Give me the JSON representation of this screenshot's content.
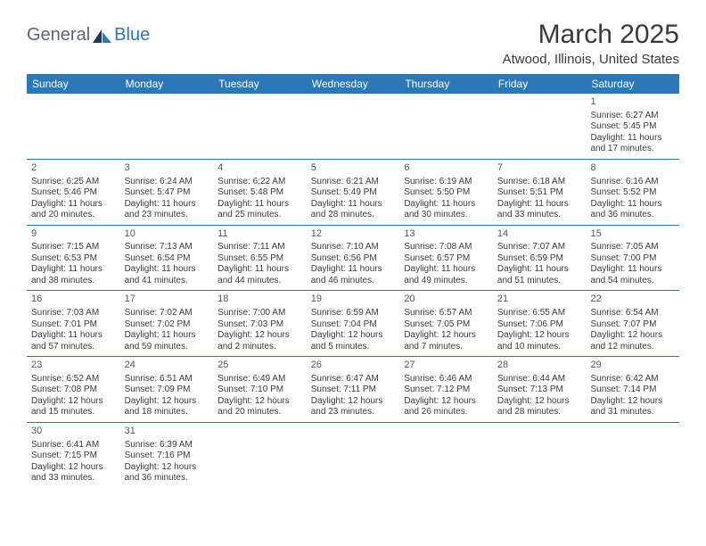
{
  "logo": {
    "part1": "General",
    "part2": "Blue"
  },
  "title": "March 2025",
  "location": "Atwood, Illinois, United States",
  "day_headers": [
    "Sunday",
    "Monday",
    "Tuesday",
    "Wednesday",
    "Thursday",
    "Friday",
    "Saturday"
  ],
  "colors": {
    "header_bg": "#2a78b8",
    "header_text": "#ffffff",
    "text": "#3a3a3a",
    "logo_gray": "#5a6670",
    "logo_blue": "#2a78b8",
    "border": "#2a78b8"
  },
  "weeks": [
    [
      null,
      null,
      null,
      null,
      null,
      null,
      {
        "n": "1",
        "sunrise": "Sunrise: 6:27 AM",
        "sunset": "Sunset: 5:45 PM",
        "daylight": "Daylight: 11 hours and 17 minutes."
      }
    ],
    [
      {
        "n": "2",
        "sunrise": "Sunrise: 6:25 AM",
        "sunset": "Sunset: 5:46 PM",
        "daylight": "Daylight: 11 hours and 20 minutes."
      },
      {
        "n": "3",
        "sunrise": "Sunrise: 6:24 AM",
        "sunset": "Sunset: 5:47 PM",
        "daylight": "Daylight: 11 hours and 23 minutes."
      },
      {
        "n": "4",
        "sunrise": "Sunrise: 6:22 AM",
        "sunset": "Sunset: 5:48 PM",
        "daylight": "Daylight: 11 hours and 25 minutes."
      },
      {
        "n": "5",
        "sunrise": "Sunrise: 6:21 AM",
        "sunset": "Sunset: 5:49 PM",
        "daylight": "Daylight: 11 hours and 28 minutes."
      },
      {
        "n": "6",
        "sunrise": "Sunrise: 6:19 AM",
        "sunset": "Sunset: 5:50 PM",
        "daylight": "Daylight: 11 hours and 30 minutes."
      },
      {
        "n": "7",
        "sunrise": "Sunrise: 6:18 AM",
        "sunset": "Sunset: 5:51 PM",
        "daylight": "Daylight: 11 hours and 33 minutes."
      },
      {
        "n": "8",
        "sunrise": "Sunrise: 6:16 AM",
        "sunset": "Sunset: 5:52 PM",
        "daylight": "Daylight: 11 hours and 36 minutes."
      }
    ],
    [
      {
        "n": "9",
        "sunrise": "Sunrise: 7:15 AM",
        "sunset": "Sunset: 6:53 PM",
        "daylight": "Daylight: 11 hours and 38 minutes."
      },
      {
        "n": "10",
        "sunrise": "Sunrise: 7:13 AM",
        "sunset": "Sunset: 6:54 PM",
        "daylight": "Daylight: 11 hours and 41 minutes."
      },
      {
        "n": "11",
        "sunrise": "Sunrise: 7:11 AM",
        "sunset": "Sunset: 6:55 PM",
        "daylight": "Daylight: 11 hours and 44 minutes."
      },
      {
        "n": "12",
        "sunrise": "Sunrise: 7:10 AM",
        "sunset": "Sunset: 6:56 PM",
        "daylight": "Daylight: 11 hours and 46 minutes."
      },
      {
        "n": "13",
        "sunrise": "Sunrise: 7:08 AM",
        "sunset": "Sunset: 6:57 PM",
        "daylight": "Daylight: 11 hours and 49 minutes."
      },
      {
        "n": "14",
        "sunrise": "Sunrise: 7:07 AM",
        "sunset": "Sunset: 6:59 PM",
        "daylight": "Daylight: 11 hours and 51 minutes."
      },
      {
        "n": "15",
        "sunrise": "Sunrise: 7:05 AM",
        "sunset": "Sunset: 7:00 PM",
        "daylight": "Daylight: 11 hours and 54 minutes."
      }
    ],
    [
      {
        "n": "16",
        "sunrise": "Sunrise: 7:03 AM",
        "sunset": "Sunset: 7:01 PM",
        "daylight": "Daylight: 11 hours and 57 minutes."
      },
      {
        "n": "17",
        "sunrise": "Sunrise: 7:02 AM",
        "sunset": "Sunset: 7:02 PM",
        "daylight": "Daylight: 11 hours and 59 minutes."
      },
      {
        "n": "18",
        "sunrise": "Sunrise: 7:00 AM",
        "sunset": "Sunset: 7:03 PM",
        "daylight": "Daylight: 12 hours and 2 minutes."
      },
      {
        "n": "19",
        "sunrise": "Sunrise: 6:59 AM",
        "sunset": "Sunset: 7:04 PM",
        "daylight": "Daylight: 12 hours and 5 minutes."
      },
      {
        "n": "20",
        "sunrise": "Sunrise: 6:57 AM",
        "sunset": "Sunset: 7:05 PM",
        "daylight": "Daylight: 12 hours and 7 minutes."
      },
      {
        "n": "21",
        "sunrise": "Sunrise: 6:55 AM",
        "sunset": "Sunset: 7:06 PM",
        "daylight": "Daylight: 12 hours and 10 minutes."
      },
      {
        "n": "22",
        "sunrise": "Sunrise: 6:54 AM",
        "sunset": "Sunset: 7:07 PM",
        "daylight": "Daylight: 12 hours and 12 minutes."
      }
    ],
    [
      {
        "n": "23",
        "sunrise": "Sunrise: 6:52 AM",
        "sunset": "Sunset: 7:08 PM",
        "daylight": "Daylight: 12 hours and 15 minutes."
      },
      {
        "n": "24",
        "sunrise": "Sunrise: 6:51 AM",
        "sunset": "Sunset: 7:09 PM",
        "daylight": "Daylight: 12 hours and 18 minutes."
      },
      {
        "n": "25",
        "sunrise": "Sunrise: 6:49 AM",
        "sunset": "Sunset: 7:10 PM",
        "daylight": "Daylight: 12 hours and 20 minutes."
      },
      {
        "n": "26",
        "sunrise": "Sunrise: 6:47 AM",
        "sunset": "Sunset: 7:11 PM",
        "daylight": "Daylight: 12 hours and 23 minutes."
      },
      {
        "n": "27",
        "sunrise": "Sunrise: 6:46 AM",
        "sunset": "Sunset: 7:12 PM",
        "daylight": "Daylight: 12 hours and 26 minutes."
      },
      {
        "n": "28",
        "sunrise": "Sunrise: 6:44 AM",
        "sunset": "Sunset: 7:13 PM",
        "daylight": "Daylight: 12 hours and 28 minutes."
      },
      {
        "n": "29",
        "sunrise": "Sunrise: 6:42 AM",
        "sunset": "Sunset: 7:14 PM",
        "daylight": "Daylight: 12 hours and 31 minutes."
      }
    ],
    [
      {
        "n": "30",
        "sunrise": "Sunrise: 6:41 AM",
        "sunset": "Sunset: 7:15 PM",
        "daylight": "Daylight: 12 hours and 33 minutes."
      },
      {
        "n": "31",
        "sunrise": "Sunrise: 6:39 AM",
        "sunset": "Sunset: 7:16 PM",
        "daylight": "Daylight: 12 hours and 36 minutes."
      },
      null,
      null,
      null,
      null,
      null
    ]
  ]
}
